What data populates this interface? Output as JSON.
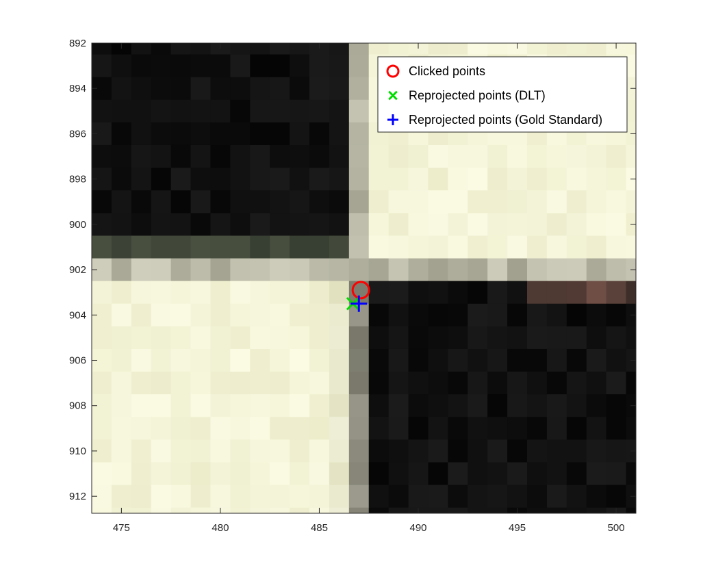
{
  "chart_data": {
    "type": "scatter",
    "title": "",
    "xlabel": "",
    "ylabel": "",
    "xlim": [
      473.5,
      501
    ],
    "ylim": [
      892,
      912.75
    ],
    "y_reversed": true,
    "grid": false,
    "legend_position": "top-right",
    "x_ticks": [
      475,
      480,
      485,
      490,
      495,
      500
    ],
    "y_ticks": [
      892,
      894,
      896,
      898,
      900,
      902,
      904,
      906,
      908,
      910,
      912
    ],
    "background_image": {
      "description": "zoomed checkerboard corner (pixel tiles)",
      "dark_color": "#050505",
      "light_color": "#fbfbe4",
      "edge_color": "#b9b8a6",
      "corner": [
        487,
        902
      ]
    },
    "series": [
      {
        "name": "Clicked points",
        "marker": "circle",
        "color": "#ff0000",
        "points": [
          [
            487.1,
            902.9
          ]
        ]
      },
      {
        "name": "Reprojected points (DLT)",
        "marker": "x",
        "color": "#00dd00",
        "points": [
          [
            486.7,
            903.5
          ]
        ]
      },
      {
        "name": "Reprojected points (Gold Standard)",
        "marker": "plus",
        "color": "#0000ff",
        "points": [
          [
            487.0,
            903.5
          ]
        ]
      }
    ]
  }
}
